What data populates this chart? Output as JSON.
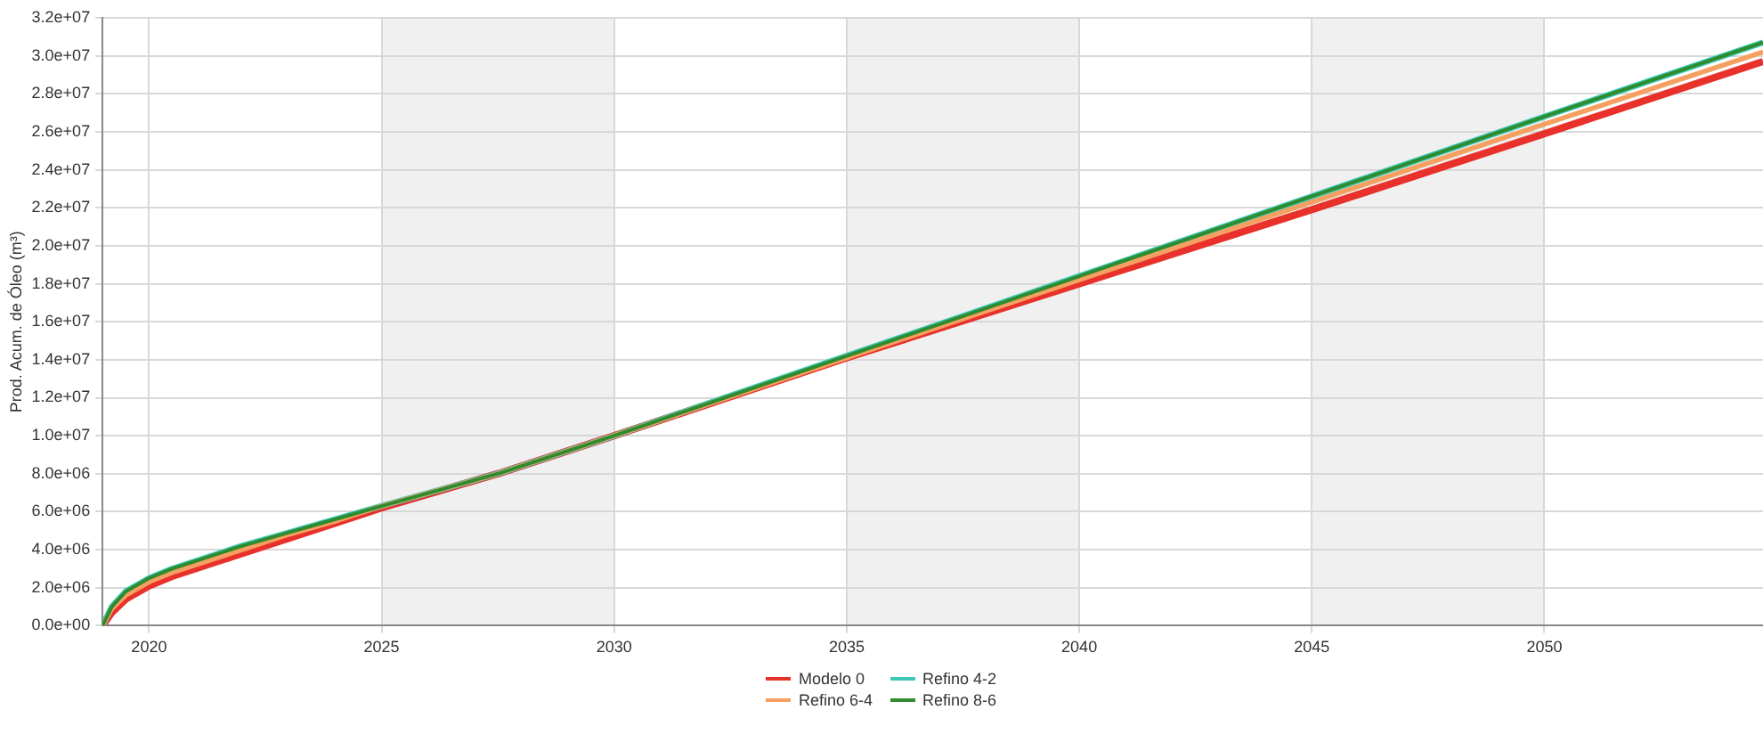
{
  "chart_data": {
    "type": "line",
    "ylabel": "Prod. Acum. de Óleo (m³)",
    "x": [
      2019,
      2019.2,
      2019.5,
      2020,
      2020.5,
      2021,
      2022,
      2023,
      2024,
      2025,
      2027.5,
      2030,
      2035,
      2040,
      2045,
      2050,
      2054.7
    ],
    "series": [
      {
        "name": "Modelo 0",
        "color": "#e8312a",
        "values": [
          0,
          700000,
          1400000,
          2100000,
          2600000,
          3000000,
          3800000,
          4600000,
          5400000,
          6200000,
          8000000,
          10000000,
          14100000,
          18000000,
          21900000,
          25900000,
          29700000
        ]
      },
      {
        "name": "Refino 4-2",
        "color": "#3cc8b4",
        "values": [
          0,
          1000000,
          1800000,
          2500000,
          3000000,
          3400000,
          4200000,
          4900000,
          5600000,
          6300000,
          8000000,
          10000000,
          14200000,
          18400000,
          22600000,
          26800000,
          30700000
        ]
      },
      {
        "name": "Refino 6-4",
        "color": "#f5a060",
        "values": [
          0,
          900000,
          1600000,
          2300000,
          2800000,
          3200000,
          4000000,
          4800000,
          5500000,
          6300000,
          8000000,
          10000000,
          14100000,
          18200000,
          22300000,
          26400000,
          30200000
        ]
      },
      {
        "name": "Refino 8-6",
        "color": "#2e8b2e",
        "values": [
          0,
          1000000,
          1800000,
          2500000,
          3000000,
          3400000,
          4200000,
          4900000,
          5600000,
          6300000,
          8000000,
          10000000,
          14200000,
          18400000,
          22600000,
          26800000,
          30700000
        ]
      }
    ],
    "xlim": [
      2019,
      2054.7
    ],
    "xticks": [
      2020,
      2025,
      2030,
      2035,
      2040,
      2045,
      2050
    ],
    "ylim": [
      0,
      32000000
    ],
    "yticks": [
      {
        "value": 0,
        "label": "0.0e+00"
      },
      {
        "value": 2000000,
        "label": "2.0e+06"
      },
      {
        "value": 4000000,
        "label": "4.0e+06"
      },
      {
        "value": 6000000,
        "label": "6.0e+06"
      },
      {
        "value": 8000000,
        "label": "8.0e+06"
      },
      {
        "value": 10000000,
        "label": "1.0e+07"
      },
      {
        "value": 12000000,
        "label": "1.2e+07"
      },
      {
        "value": 14000000,
        "label": "1.4e+07"
      },
      {
        "value": 16000000,
        "label": "1.6e+07"
      },
      {
        "value": 18000000,
        "label": "1.8e+07"
      },
      {
        "value": 20000000,
        "label": "2.0e+07"
      },
      {
        "value": 22000000,
        "label": "2.2e+07"
      },
      {
        "value": 24000000,
        "label": "2.4e+07"
      },
      {
        "value": 26000000,
        "label": "2.6e+07"
      },
      {
        "value": 28000000,
        "label": "2.8e+07"
      },
      {
        "value": 30000000,
        "label": "3.0e+07"
      },
      {
        "value": 32000000,
        "label": "3.2e+07"
      }
    ],
    "bands": [
      {
        "axis": "x",
        "from": 2025,
        "to": 2030,
        "color": "#f0f0f0"
      },
      {
        "axis": "x",
        "from": 2035,
        "to": 2040,
        "color": "#f0f0f0"
      },
      {
        "axis": "x",
        "from": 2045,
        "to": 2050,
        "color": "#f0f0f0"
      }
    ],
    "grid": true,
    "legend": "bottom",
    "marker": "none",
    "line_style": "solid"
  }
}
